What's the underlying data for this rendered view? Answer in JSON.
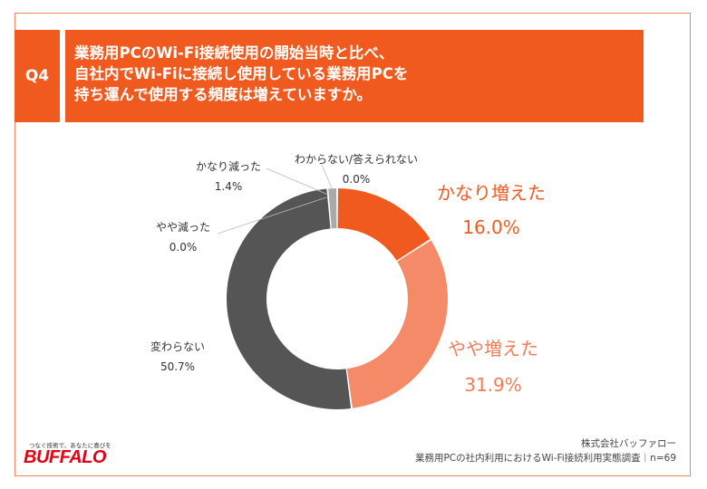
{
  "header": {
    "badge": "Q4",
    "question_lines": [
      "業務用PCのWi-Fi接続使用の開始当時と比べ、",
      "自社内でWi-Fiに接続し使用している業務用PCを",
      "持ち運んで使用する頻度は増えていますか。"
    ]
  },
  "chart_data": {
    "type": "donut",
    "title": "",
    "unit": "%",
    "slices": [
      {
        "label": "かなり増えた",
        "value": 16.0,
        "display": "16.0%",
        "color": "#f05a1e"
      },
      {
        "label": "やや増えた",
        "value": 31.9,
        "display": "31.9%",
        "color": "#f58a68"
      },
      {
        "label": "変わらない",
        "value": 50.7,
        "display": "50.7%",
        "color": "#555555"
      },
      {
        "label": "やや減った",
        "value": 0.0,
        "display": "0.0%",
        "color": "#aaaaaa"
      },
      {
        "label": "かなり減った",
        "value": 1.4,
        "display": "1.4%",
        "color": "#aaaaaa"
      },
      {
        "label": "わからない/答えられない",
        "value": 0.0,
        "display": "0.0%",
        "color": "#cccccc"
      }
    ]
  },
  "footer": {
    "company": "株式会社バッファロー",
    "survey": "業務用PCの社内利用におけるWi-Fi接続利用実態調査｜n=69"
  },
  "logo": {
    "tagline": "つなぐ技術で、あなたに喜びを",
    "brand": "BUFFALO"
  }
}
